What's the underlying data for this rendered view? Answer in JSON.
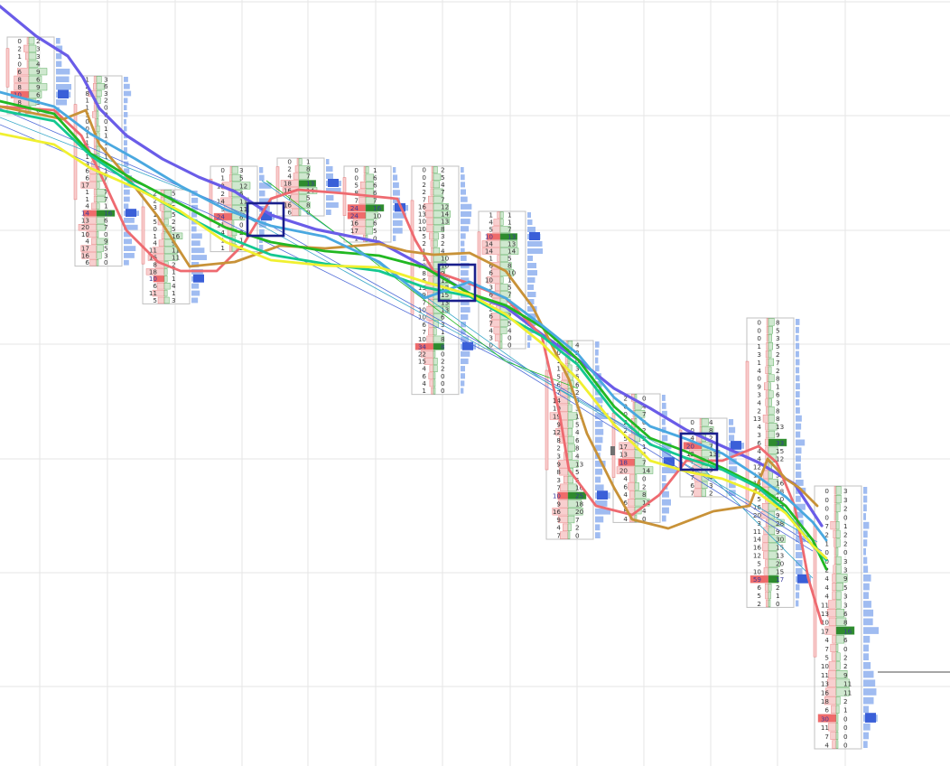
{
  "chart_data": {
    "type": "footprint-candlestick",
    "colors": {
      "sell": "#e57373",
      "buy": "#43a047",
      "sell_soft": "#f8cfcf",
      "buy_soft": "#cfe8cf",
      "volume_profile": "#8fb0ef",
      "poc": "#3a5fd8",
      "box_frame": "#c0c0c0",
      "grid": "#e6e6e6",
      "highlight": "#1a1f8c"
    },
    "bars": [
      {
        "bid": [
          0,
          2,
          1,
          0,
          6,
          8,
          8,
          10,
          8,
          1
        ],
        "ask": [
          2,
          3,
          3,
          4,
          9,
          6,
          9,
          6,
          3,
          0
        ],
        "poc_row": 7,
        "bid_hl": [
          7
        ],
        "ask_hl": []
      },
      {
        "bid": [
          1,
          2,
          8,
          1,
          1,
          3,
          0,
          0,
          1,
          1,
          1,
          1,
          4,
          6,
          6,
          17,
          1,
          1,
          4,
          14,
          13,
          20,
          10,
          4,
          17,
          16,
          6
        ],
        "ask": [
          3,
          6,
          3,
          2,
          0,
          0,
          0,
          1,
          1,
          1,
          1,
          1,
          1,
          1,
          7,
          1,
          7,
          7,
          1,
          16,
          6,
          7,
          0,
          9,
          5,
          3,
          0
        ],
        "poc_row": 19,
        "bid_hl": [
          19
        ],
        "ask_hl": [
          19
        ]
      },
      {
        "bid": [
          2,
          2,
          3,
          1,
          5,
          0,
          1,
          4,
          11,
          16,
          8,
          18,
          10,
          6,
          11,
          5
        ],
        "ask": [
          5,
          6,
          5,
          5,
          2,
          5,
          16,
          9,
          11,
          11,
          2,
          1,
          1,
          4,
          1,
          3
        ],
        "poc_row": 12,
        "bid_hl": [
          12
        ],
        "ask_hl": []
      },
      {
        "bid": [
          0,
          1,
          12,
          2,
          14,
          9,
          24,
          11,
          4,
          1,
          1
        ],
        "ask": [
          3,
          5,
          12,
          6,
          11,
          11,
          8,
          0,
          2,
          1,
          2
        ],
        "poc_row": 6,
        "bid_hl": [
          6
        ],
        "ask_hl": []
      },
      {
        "bid": [
          0,
          2,
          4,
          18,
          16,
          7,
          16,
          6
        ],
        "ask": [
          1,
          8,
          7,
          13,
          14,
          5,
          8,
          0
        ],
        "poc_row": 3,
        "bid_hl": [],
        "ask_hl": [
          3
        ]
      },
      {
        "bid": [
          0,
          0,
          5,
          8,
          7,
          24,
          24,
          16,
          17,
          1
        ],
        "ask": [
          1,
          6,
          6,
          6,
          7,
          16,
          10,
          6,
          5,
          0
        ],
        "poc_row": 5,
        "bid_hl": [
          5,
          6
        ],
        "ask_hl": [
          5
        ]
      },
      {
        "bid": [
          0,
          0,
          2,
          2,
          7,
          16,
          13,
          10,
          10,
          5,
          2,
          1,
          1,
          10,
          8,
          6,
          13,
          9,
          7,
          10,
          10,
          6,
          7,
          10,
          34,
          22,
          15,
          4,
          6,
          4,
          1
        ],
        "ask": [
          2,
          5,
          4,
          7,
          7,
          12,
          14,
          13,
          8,
          3,
          2,
          4,
          10,
          10,
          9,
          13,
          12,
          15,
          13,
          13,
          6,
          3,
          1,
          8,
          8,
          0,
          2,
          2,
          0,
          0,
          0
        ],
        "poc_row": 24,
        "bid_hl": [
          24
        ],
        "ask_hl": [
          24
        ]
      },
      {
        "bid": [
          1,
          4,
          5,
          10,
          14,
          14,
          1,
          6,
          6,
          10,
          3,
          6,
          5,
          2,
          6,
          7,
          4,
          3,
          0
        ],
        "ask": [
          1,
          1,
          7,
          13,
          13,
          14,
          5,
          8,
          10,
          1,
          5,
          7,
          4,
          13,
          7,
          5,
          4,
          0,
          0
        ],
        "poc_row": 3,
        "bid_hl": [
          3
        ],
        "ask_hl": [
          3
        ]
      },
      {
        "bid": [
          0,
          0,
          1,
          1,
          5,
          6,
          7,
          14,
          10,
          19,
          9,
          12,
          8,
          2,
          3,
          9,
          8,
          3,
          7,
          10,
          9,
          16,
          9,
          4,
          7
        ],
        "ask": [
          4,
          2,
          0,
          3,
          5,
          6,
          2,
          0,
          3,
          11,
          5,
          4,
          6,
          8,
          4,
          13,
          5,
          5,
          10,
          25,
          18,
          20,
          7,
          2,
          0
        ],
        "poc_row": 19,
        "bid_hl": [
          19
        ],
        "ask_hl": [
          19
        ]
      },
      {
        "bid": [
          2,
          0,
          0,
          2,
          2,
          5,
          17,
          13,
          18,
          20,
          4,
          6,
          4,
          6,
          8,
          4
        ],
        "ask": [
          0,
          4,
          7,
          0,
          2,
          3,
          1,
          4,
          7,
          14,
          0,
          2,
          8,
          11,
          4,
          0
        ],
        "poc_row": 8,
        "bid_hl": [
          8
        ],
        "ask_hl": []
      },
      {
        "bid": [
          0,
          0,
          4,
          20,
          13,
          7,
          9,
          7,
          6,
          7
        ],
        "ask": [
          4,
          8,
          2,
          7,
          13,
          4,
          3,
          4,
          3,
          2
        ],
        "poc_row": 3,
        "bid_hl": [
          3
        ],
        "ask_hl": []
      },
      {
        "bid": [
          0,
          0,
          0,
          1,
          3,
          1,
          4,
          0,
          9,
          3,
          4,
          2,
          13,
          4,
          3,
          6,
          4,
          4,
          12,
          13,
          15,
          27,
          5,
          16,
          20,
          3,
          11,
          14,
          16,
          12,
          5,
          10,
          59,
          6,
          5,
          2
        ],
        "ask": [
          8,
          5,
          3,
          5,
          2,
          7,
          2,
          8,
          1,
          6,
          3,
          8,
          8,
          13,
          9,
          33,
          15,
          12,
          3,
          5,
          16,
          18,
          10,
          27,
          9,
          28,
          9,
          30,
          15,
          13,
          20,
          15,
          17,
          2,
          1,
          0
        ],
        "poc_row": 32,
        "bid_hl": [
          32
        ],
        "ask_hl": [
          15,
          32
        ]
      },
      {
        "bid": [
          0,
          0,
          0,
          0,
          7,
          2,
          1,
          0,
          0,
          2,
          4,
          4,
          4,
          11,
          13,
          10,
          17,
          4,
          7,
          5,
          10,
          11,
          13,
          16,
          18,
          6,
          30,
          11,
          7,
          4
        ],
        "ask": [
          3,
          3,
          2,
          0,
          1,
          2,
          2,
          0,
          3,
          3,
          9,
          5,
          3,
          3,
          6,
          8,
          16,
          6,
          0,
          2,
          2,
          9,
          11,
          11,
          2,
          1,
          0,
          0,
          0,
          0
        ],
        "poc_row": 26,
        "bid_hl": [
          26
        ],
        "ask_hl": [
          16
        ]
      }
    ],
    "overlay_lines": [
      {
        "name": "moving-average-blue",
        "color": "#6a5ce8"
      },
      {
        "name": "moving-average-red",
        "color": "#ee6a70"
      },
      {
        "name": "moving-average-gold",
        "color": "#c89238"
      },
      {
        "name": "moving-average-green",
        "color": "#22b822"
      },
      {
        "name": "moving-average-teal",
        "color": "#14c890"
      },
      {
        "name": "moving-average-lightblue",
        "color": "#4aa8e0"
      },
      {
        "name": "moving-average-yellow",
        "color": "#f0f030"
      }
    ]
  }
}
